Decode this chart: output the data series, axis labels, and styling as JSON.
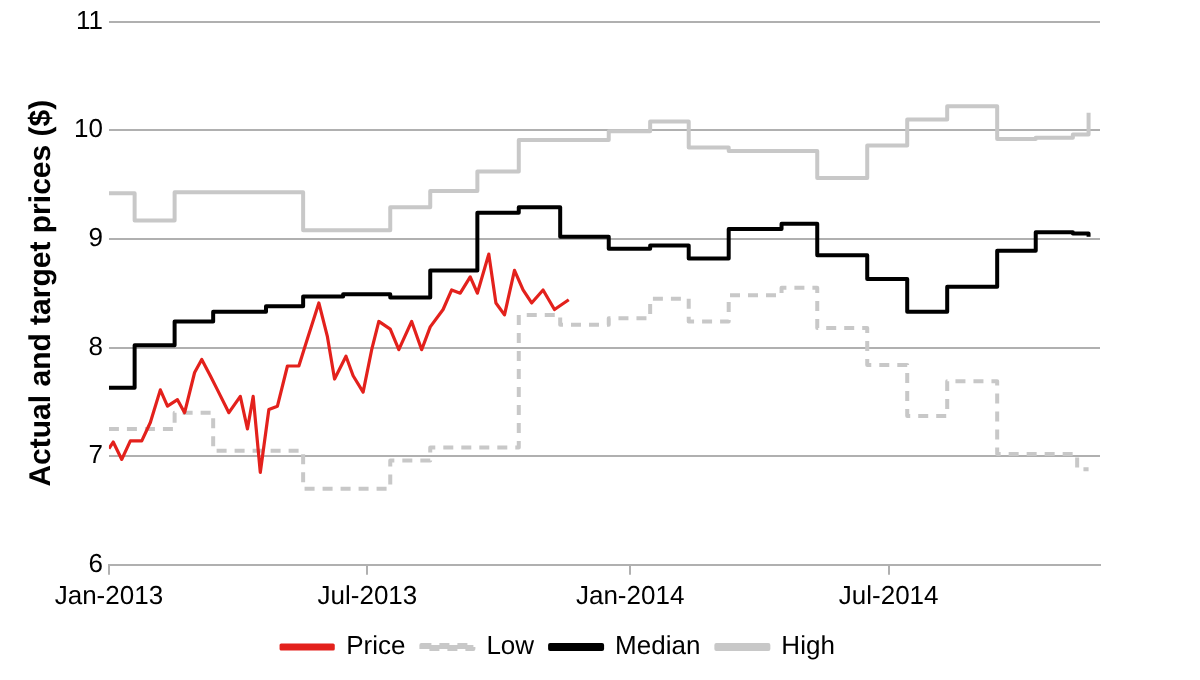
{
  "chart_data": {
    "type": "line",
    "ylabel": "Actual and target prices ($)",
    "xlim": [
      "2013-01-01",
      "2014-11-26"
    ],
    "xticks": [
      {
        "value": "2013-01",
        "label": "Jan-2013"
      },
      {
        "value": "2013-07",
        "label": "Jul-2013"
      },
      {
        "value": "2014-01",
        "label": "Jan-2014"
      },
      {
        "value": "2014-07",
        "label": "Jul-2014"
      }
    ],
    "ylim": [
      6,
      11
    ],
    "yticks": [
      6,
      7,
      8,
      9,
      10,
      11
    ],
    "grid": "y",
    "legend": "bottom",
    "marker": "none",
    "series": [
      {
        "name": "Price",
        "type": "line",
        "color": "#e3211c",
        "line_style": "solid",
        "x": [
          "2013-01-01",
          "2013-01-04",
          "2013-01-10",
          "2013-01-16",
          "2013-01-24",
          "2013-01-30",
          "2013-02-06",
          "2013-02-11",
          "2013-02-18",
          "2013-02-23",
          "2013-03-02",
          "2013-03-07",
          "2013-03-13",
          "2013-03-18",
          "2013-03-26",
          "2013-04-03",
          "2013-04-08",
          "2013-04-12",
          "2013-04-17",
          "2013-04-23",
          "2013-04-29",
          "2013-05-06",
          "2013-05-14",
          "2013-05-19",
          "2013-05-28",
          "2013-06-03",
          "2013-06-08",
          "2013-06-16",
          "2013-06-21",
          "2013-06-28",
          "2013-07-04",
          "2013-07-09",
          "2013-07-17",
          "2013-07-23",
          "2013-08-01",
          "2013-08-08",
          "2013-08-14",
          "2013-08-23",
          "2013-08-29",
          "2013-09-04",
          "2013-09-11",
          "2013-09-16",
          "2013-09-24",
          "2013-09-29",
          "2013-10-05",
          "2013-10-12",
          "2013-10-18",
          "2013-10-24",
          "2013-11-01",
          "2013-11-09",
          "2013-11-19"
        ],
        "values": [
          7.07,
          7.13,
          6.97,
          7.14,
          7.14,
          7.31,
          7.61,
          7.46,
          7.52,
          7.4,
          7.77,
          7.89,
          7.74,
          7.61,
          7.4,
          7.55,
          7.25,
          7.55,
          6.85,
          7.43,
          7.46,
          7.83,
          7.83,
          8.04,
          8.41,
          8.1,
          7.71,
          7.92,
          7.74,
          7.59,
          7.98,
          8.24,
          8.17,
          7.98,
          8.24,
          7.98,
          8.19,
          8.35,
          8.53,
          8.5,
          8.65,
          8.5,
          8.86,
          8.41,
          8.3,
          8.71,
          8.53,
          8.41,
          8.53,
          8.35,
          8.44
        ]
      },
      {
        "name": "Low",
        "type": "step",
        "color": "#c8c8c8",
        "line_style": "dashed",
        "x": [
          "2013-01-01",
          "2013-02-16",
          "2013-03-15",
          "2013-05-17",
          "2013-07-17",
          "2013-08-14",
          "2013-10-15",
          "2013-11-13",
          "2013-12-17",
          "2014-01-15",
          "2014-02-11",
          "2014-03-11",
          "2014-04-17",
          "2014-05-12",
          "2014-06-16",
          "2014-07-14",
          "2014-08-11",
          "2014-09-15",
          "2014-11-07",
          "2014-11-10",
          "2014-11-18"
        ],
        "values": [
          7.25,
          7.4,
          7.05,
          6.7,
          6.96,
          7.08,
          8.3,
          8.21,
          8.27,
          8.45,
          8.24,
          8.48,
          8.55,
          8.18,
          7.84,
          7.37,
          7.69,
          7.02,
          7.0,
          6.88,
          6.88
        ]
      },
      {
        "name": "Median",
        "type": "step",
        "color": "#000000",
        "line_style": "solid",
        "x": [
          "2013-01-01",
          "2013-01-19",
          "2013-02-16",
          "2013-03-15",
          "2013-04-21",
          "2013-05-17",
          "2013-06-14",
          "2013-07-17",
          "2013-08-14",
          "2013-09-16",
          "2013-10-15",
          "2013-11-13",
          "2013-12-17",
          "2014-01-15",
          "2014-02-11",
          "2014-03-11",
          "2014-04-17",
          "2014-05-12",
          "2014-06-16",
          "2014-07-14",
          "2014-08-11",
          "2014-09-15",
          "2014-10-12",
          "2014-11-07",
          "2014-11-18"
        ],
        "values": [
          7.63,
          8.02,
          8.24,
          8.33,
          8.38,
          8.47,
          8.49,
          8.46,
          8.71,
          9.24,
          9.29,
          9.02,
          8.91,
          8.94,
          8.82,
          9.09,
          9.14,
          8.85,
          8.63,
          8.33,
          8.56,
          8.89,
          9.06,
          9.05,
          9.02
        ]
      },
      {
        "name": "High",
        "type": "step",
        "color": "#c8c8c8",
        "line_style": "solid",
        "x": [
          "2013-01-01",
          "2013-01-19",
          "2013-02-16",
          "2013-05-17",
          "2013-07-17",
          "2013-08-14",
          "2013-09-16",
          "2013-10-15",
          "2013-12-17",
          "2014-01-15",
          "2014-02-11",
          "2014-03-11",
          "2014-05-12",
          "2014-06-16",
          "2014-07-14",
          "2014-08-11",
          "2014-09-15",
          "2014-10-12",
          "2014-11-07",
          "2014-11-18"
        ],
        "values": [
          9.42,
          9.17,
          9.43,
          9.08,
          9.29,
          9.44,
          9.62,
          9.91,
          9.99,
          10.08,
          9.84,
          9.81,
          9.56,
          9.86,
          10.1,
          10.22,
          9.92,
          9.93,
          9.96,
          10.16
        ]
      }
    ]
  }
}
